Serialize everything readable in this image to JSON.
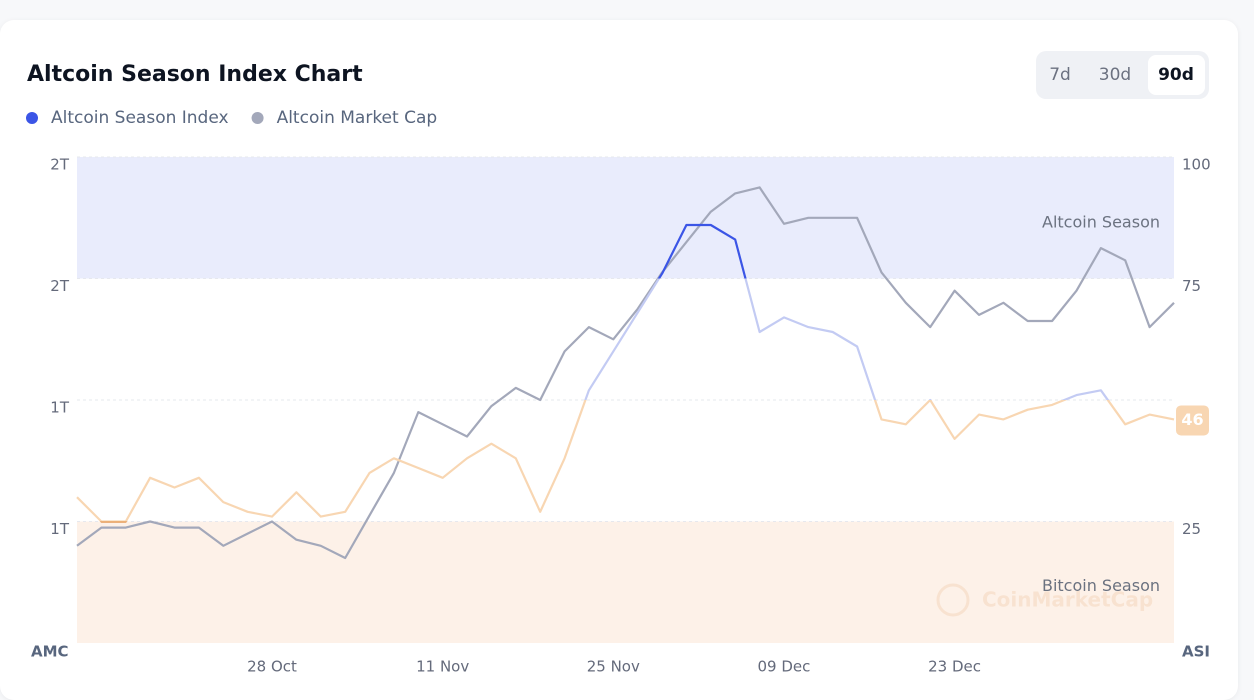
{
  "chart_data": {
    "type": "line",
    "title": "Altcoin Season Index Chart",
    "controls": {
      "options": [
        "7d",
        "30d",
        "90d"
      ],
      "selected": 2
    },
    "categories": [
      null,
      null,
      null,
      null,
      null,
      null,
      null,
      null,
      "28 Oct",
      null,
      null,
      null,
      null,
      null,
      null,
      "11 Nov",
      null,
      null,
      null,
      null,
      null,
      null,
      "25 Nov",
      null,
      null,
      null,
      null,
      null,
      null,
      "09 Dec",
      null,
      null,
      null,
      null,
      null,
      null,
      "23 Dec",
      null,
      null,
      null,
      null,
      null,
      null,
      null,
      null,
      null
    ],
    "series": [
      {
        "name": "Altcoin Season Index",
        "color": "#3b55e6",
        "axis": "y2",
        "values": [
          30,
          25,
          25,
          34,
          32,
          34,
          29,
          27,
          26,
          31,
          26,
          27,
          35,
          38,
          36,
          34,
          38,
          41,
          38,
          27,
          38,
          52,
          60,
          68,
          76,
          86,
          86,
          83,
          64,
          67,
          65,
          64,
          61,
          46,
          45,
          50,
          42,
          47,
          46,
          48,
          49,
          51,
          52,
          45,
          47,
          46
        ]
      },
      {
        "name": "Altcoin Market Cap",
        "color": "#a3a8ba",
        "values": [
          1160000000000.0,
          1190000000000.0,
          1190000000000.0,
          1200000000000.0,
          1190000000000.0,
          1190000000000.0,
          1160000000000.0,
          1180000000000.0,
          1200000000000.0,
          1170000000000.0,
          1160000000000.0,
          1140000000000.0,
          1210000000000.0,
          1280000000000.0,
          1380000000000.0,
          1360000000000.0,
          1340000000000.0,
          1390000000000.0,
          1420000000000.0,
          1400000000000.0,
          1480000000000.0,
          1520000000000.0,
          1500000000000.0,
          1550000000000.0,
          1610000000000.0,
          1660000000000.0,
          1710000000000.0,
          1740000000000.0,
          1750000000000.0,
          1690000000000.0,
          1700000000000.0,
          1700000000000.0,
          1700000000000.0,
          1610000000000.0,
          1560000000000.0,
          1520000000000.0,
          1580000000000.0,
          1540000000000.0,
          1560000000000.0,
          1530000000000.0,
          1530000000000.0,
          1580000000000.0,
          1650000000000.0,
          1630000000000.0,
          1520000000000.0,
          1560000000000.0
        ]
      }
    ],
    "y_label": "AMC",
    "y2_label": "ASI",
    "ylim": [
      1000000000000.0,
      1800000000000.0
    ],
    "yticks": [
      {
        "value": 1200000000000.0,
        "label": "1T"
      },
      {
        "value": 1400000000000.0,
        "label": "1T"
      },
      {
        "value": 1600000000000.0,
        "label": "2T"
      },
      {
        "value": 1800000000000.0,
        "label": "2T"
      }
    ],
    "y2lim": [
      0,
      100
    ],
    "y2ticks": [
      25,
      75,
      100
    ],
    "grid": true,
    "bands": [
      {
        "label": "Altcoin Season",
        "from": 75,
        "to": 100,
        "color": "#e9ecfc"
      },
      {
        "label": "Bitcoin Season",
        "from": 0,
        "to": 25,
        "color": "#fdf1e8"
      }
    ],
    "line_zones": [
      {
        "from": 75,
        "to": 100,
        "color": "#3b55e6"
      },
      {
        "from": 50,
        "to": 75,
        "color": "#c3cbf3"
      },
      {
        "from": 25,
        "to": 50,
        "color": "#f8d6b2"
      },
      {
        "from": 0,
        "to": 25,
        "color": "#e08a3c"
      }
    ],
    "watermark": "CoinMarketCap"
  }
}
